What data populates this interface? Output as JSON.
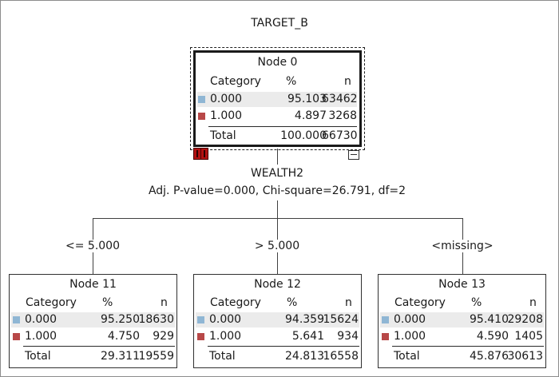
{
  "title": "TARGET_B",
  "legend_colors": {
    "cat0": "#8fb6d4",
    "cat1": "#b84848"
  },
  "root": {
    "name": "Node 0",
    "header": {
      "category": "Category",
      "percent": "%",
      "n": "n"
    },
    "rows": [
      {
        "category": "0.000",
        "percent": "95.103",
        "n": "63462"
      },
      {
        "category": "1.000",
        "percent": "4.897",
        "n": "3268"
      }
    ],
    "total": {
      "label": "Total",
      "percent": "100.000",
      "n": "66730"
    }
  },
  "split": {
    "variable": "WEALTH2",
    "stats": "Adj. P-value=0.000, Chi-square=26.791, df=2"
  },
  "branches": [
    {
      "label": "<= 5.000",
      "node": {
        "name": "Node 11",
        "header": {
          "category": "Category",
          "percent": "%",
          "n": "n"
        },
        "rows": [
          {
            "category": "0.000",
            "percent": "95.250",
            "n": "18630"
          },
          {
            "category": "1.000",
            "percent": "4.750",
            "n": "929"
          }
        ],
        "total": {
          "label": "Total",
          "percent": "29.311",
          "n": "19559"
        }
      }
    },
    {
      "label": "> 5.000",
      "node": {
        "name": "Node 12",
        "header": {
          "category": "Category",
          "percent": "%",
          "n": "n"
        },
        "rows": [
          {
            "category": "0.000",
            "percent": "94.359",
            "n": "15624"
          },
          {
            "category": "1.000",
            "percent": "5.641",
            "n": "934"
          }
        ],
        "total": {
          "label": "Total",
          "percent": "24.813",
          "n": "16558"
        }
      }
    },
    {
      "label": "<missing>",
      "node": {
        "name": "Node 13",
        "header": {
          "category": "Category",
          "percent": "%",
          "n": "n"
        },
        "rows": [
          {
            "category": "0.000",
            "percent": "95.410",
            "n": "29208"
          },
          {
            "category": "1.000",
            "percent": "4.590",
            "n": "1405"
          }
        ],
        "total": {
          "label": "Total",
          "percent": "45.876",
          "n": "30613"
        }
      }
    }
  ]
}
